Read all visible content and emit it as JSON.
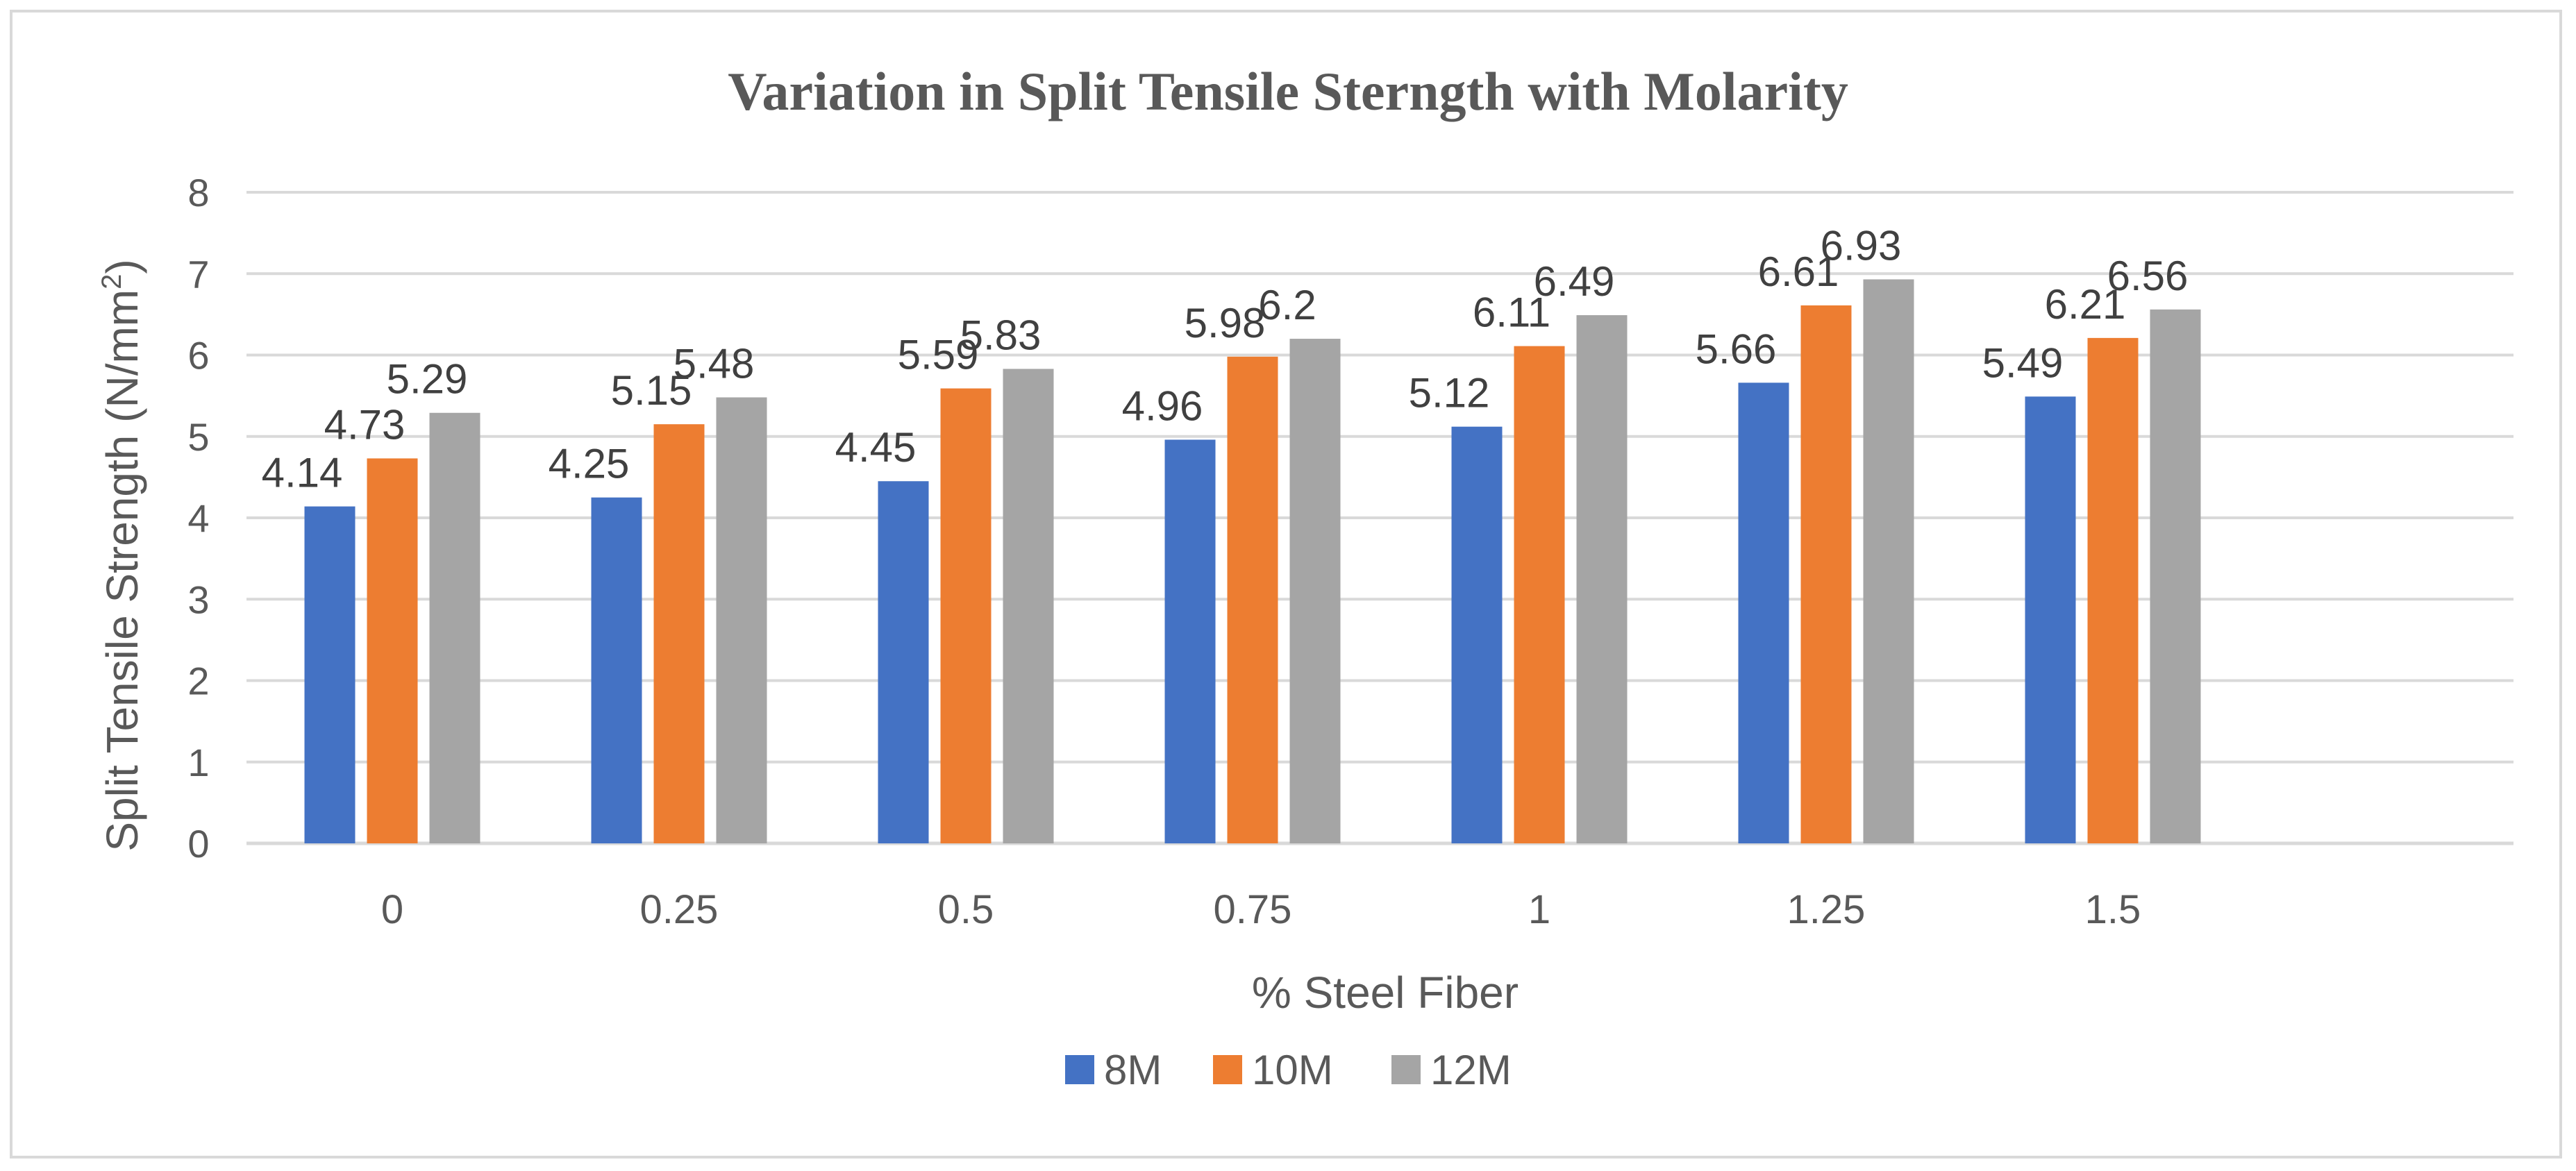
{
  "chart_data": {
    "type": "bar",
    "title": "Variation in Split Tensile Sterngth with Molarity",
    "xlabel": "% Steel Fiber",
    "ylabel_main": "Split Tensile Strength (N/mm",
    "ylabel_sup": "2",
    "ylabel_close": ")",
    "ylim": [
      0,
      8
    ],
    "yticks": [
      "0",
      "1",
      "2",
      "3",
      "4",
      "5",
      "6",
      "7",
      "8"
    ],
    "grid": true,
    "legend_position": "bottom",
    "categories": [
      "0",
      "0.25",
      "0.5",
      "0.75",
      "1",
      "1.25",
      "1.5"
    ],
    "series": [
      {
        "name": "8M",
        "color": "#4472c4",
        "values": [
          4.14,
          4.25,
          4.45,
          4.96,
          5.12,
          5.66,
          5.49
        ]
      },
      {
        "name": "10M",
        "color": "#ed7d31",
        "values": [
          4.73,
          5.15,
          5.59,
          5.98,
          6.11,
          6.61,
          6.21
        ]
      },
      {
        "name": "12M",
        "color": "#a5a5a5",
        "values": [
          5.29,
          5.48,
          5.83,
          6.2,
          6.49,
          6.93,
          6.56
        ]
      }
    ],
    "data_labels": [
      [
        "4.14",
        "4.25",
        "4.45",
        "4.96",
        "5.12",
        "5.66",
        "5.49"
      ],
      [
        "4.73",
        "5.15",
        "5.59",
        "5.98",
        "6.11",
        "6.61",
        "6.21"
      ],
      [
        "5.29",
        "5.48",
        "5.83",
        "6.2",
        "6.49",
        "6.93",
        "6.56"
      ]
    ]
  }
}
